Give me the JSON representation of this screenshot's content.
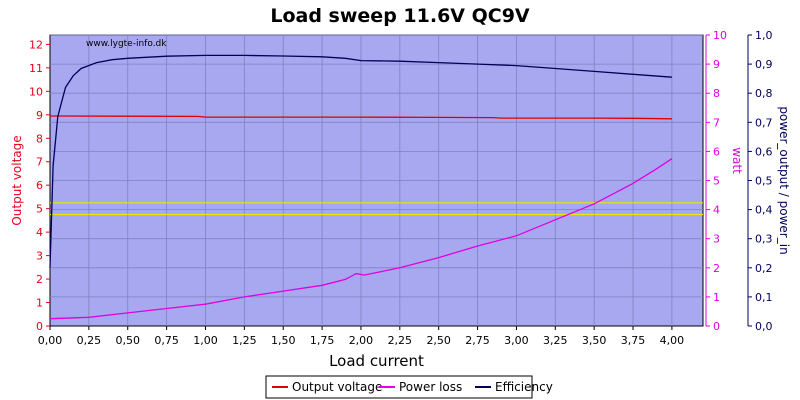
{
  "chart_data": {
    "type": "line",
    "title": "Load sweep 11.6V QC9V",
    "watermark": "www.lygte-info.dk",
    "xlabel": "Load current",
    "x_axis": {
      "min": 0,
      "max": 4.2,
      "ticks": [
        0,
        0.25,
        0.5,
        0.75,
        1,
        1.25,
        1.5,
        1.75,
        2,
        2.25,
        2.5,
        2.75,
        3,
        3.25,
        3.5,
        3.75,
        4
      ],
      "tick_labels": [
        "0,00",
        "0,25",
        "0,50",
        "0,75",
        "1,00",
        "1,25",
        "1,50",
        "1,75",
        "2,00",
        "2,25",
        "2,50",
        "2,75",
        "3,00",
        "3,25",
        "3,50",
        "3,75",
        "4,00"
      ]
    },
    "y_axes": {
      "left": {
        "label": "Output voltage",
        "color": "#e8001c",
        "min": 0,
        "max": 12.4,
        "ticks": [
          0,
          1,
          2,
          3,
          4,
          5,
          6,
          7,
          8,
          9,
          10,
          11,
          12
        ],
        "tick_labels": [
          "0",
          "1",
          "2",
          "3",
          "4",
          "5",
          "6",
          "7",
          "8",
          "9",
          "10",
          "11",
          "12"
        ]
      },
      "right1": {
        "label": "watt",
        "color": "#e000e0",
        "min": 0,
        "max": 10,
        "ticks": [
          0,
          1,
          2,
          3,
          4,
          5,
          6,
          7,
          8,
          9,
          10
        ],
        "tick_labels": [
          "0",
          "1",
          "2",
          "3",
          "4",
          "5",
          "6",
          "7",
          "8",
          "9",
          "10"
        ]
      },
      "right2": {
        "label": "power_output / power_in",
        "color": "#000060",
        "min": 0,
        "max": 1,
        "ticks": [
          0,
          0.1,
          0.2,
          0.3,
          0.4,
          0.5,
          0.6,
          0.7,
          0.8,
          0.9,
          1
        ],
        "tick_labels": [
          "0,0",
          "0,1",
          "0,2",
          "0,3",
          "0,4",
          "0,5",
          "0,6",
          "0,7",
          "0,8",
          "0,9",
          "1,0"
        ]
      }
    },
    "reference_lines": [
      {
        "axis": "left",
        "value": 5.25,
        "color": "#e8e800"
      },
      {
        "axis": "left",
        "value": 4.75,
        "color": "#e8e800"
      }
    ],
    "series": [
      {
        "name": "Output voltage",
        "axis": "left",
        "color": "#e00000",
        "x": [
          0,
          0.5,
          0.95,
          1.0,
          1.5,
          2.0,
          2.5,
          2.85,
          2.9,
          3.5,
          3.75,
          4.0
        ],
        "y": [
          8.95,
          8.94,
          8.93,
          8.9,
          8.9,
          8.9,
          8.89,
          8.88,
          8.86,
          8.86,
          8.85,
          8.83
        ]
      },
      {
        "name": "Power loss",
        "axis": "right1",
        "color": "#e000e0",
        "x": [
          0,
          0.25,
          0.5,
          0.75,
          1.0,
          1.25,
          1.5,
          1.75,
          1.9,
          1.97,
          2.02,
          2.25,
          2.5,
          2.75,
          3.0,
          3.25,
          3.5,
          3.75,
          3.9,
          4.0
        ],
        "y": [
          0.25,
          0.3,
          0.45,
          0.6,
          0.75,
          1.0,
          1.2,
          1.4,
          1.6,
          1.8,
          1.75,
          2.0,
          2.35,
          2.75,
          3.1,
          3.65,
          4.2,
          4.9,
          5.4,
          5.75
        ]
      },
      {
        "name": "Efficiency",
        "axis": "right2",
        "color": "#00005a",
        "x": [
          0,
          0.02,
          0.05,
          0.1,
          0.15,
          0.2,
          0.3,
          0.4,
          0.5,
          0.75,
          1.0,
          1.25,
          1.5,
          1.75,
          1.9,
          2.0,
          2.25,
          2.5,
          2.75,
          3.0,
          3.25,
          3.5,
          3.75,
          4.0
        ],
        "y": [
          0.2,
          0.55,
          0.72,
          0.82,
          0.86,
          0.885,
          0.905,
          0.915,
          0.92,
          0.927,
          0.93,
          0.93,
          0.928,
          0.925,
          0.92,
          0.912,
          0.91,
          0.905,
          0.9,
          0.895,
          0.885,
          0.875,
          0.865,
          0.855
        ]
      }
    ],
    "colors": {
      "plot_background": "#a8a8f0",
      "grid": "#8080c0"
    },
    "grid": true,
    "legend_position": "bottom-center"
  }
}
